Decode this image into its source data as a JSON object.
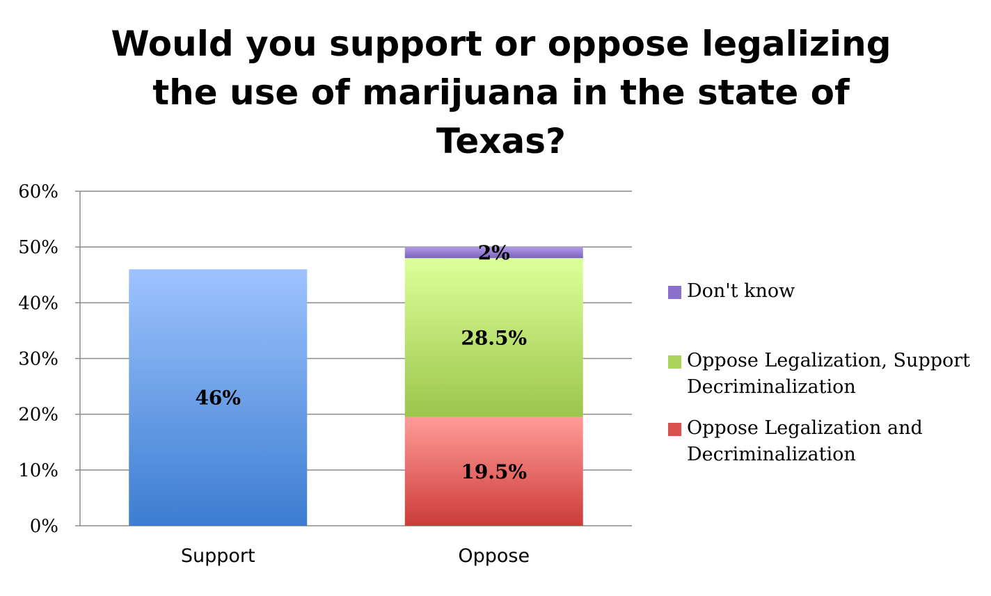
{
  "chart_data": {
    "type": "bar",
    "stacked": true,
    "title_lines": [
      "Would you support or oppose legalizing",
      "the use of marijuana in the state of",
      "Texas?"
    ],
    "categories": [
      "Support",
      "Oppose"
    ],
    "ylim": [
      0,
      60
    ],
    "yticks": [
      "0%",
      "10%",
      "20%",
      "30%",
      "40%",
      "50%",
      "60%"
    ],
    "grid": true,
    "legend_position": "right",
    "series": [
      {
        "name": "Oppose Legalization and Decriminalization",
        "values": [
          0,
          19.5
        ],
        "labels": [
          "",
          "19.5%"
        ],
        "color_top": "#ff9b99",
        "color_bottom": "#cc3c39"
      },
      {
        "name": "Oppose Legalization, Support Decriminalization",
        "values": [
          0,
          28.5
        ],
        "labels": [
          "",
          "28.5%"
        ],
        "color_top": "#ddff9a",
        "color_bottom": "#9bc54b"
      },
      {
        "name": "Don't know",
        "values": [
          0,
          2
        ],
        "labels": [
          "",
          "2%"
        ],
        "color_top": "#b09ae6",
        "color_bottom": "#7c62be"
      },
      {
        "name": "",
        "values": [
          46,
          0
        ],
        "labels": [
          "46%",
          ""
        ],
        "color_top": "#9dc3ff",
        "color_bottom": "#3c7dd0"
      }
    ],
    "legend": [
      {
        "label": "Don't know",
        "color": "#8b6fcc"
      },
      {
        "label": "Oppose Legalization, Support\nDecriminalization",
        "color": "#a9d65a"
      },
      {
        "label": "Oppose Legalization and\nDecriminalization",
        "color": "#d9504c"
      }
    ]
  }
}
